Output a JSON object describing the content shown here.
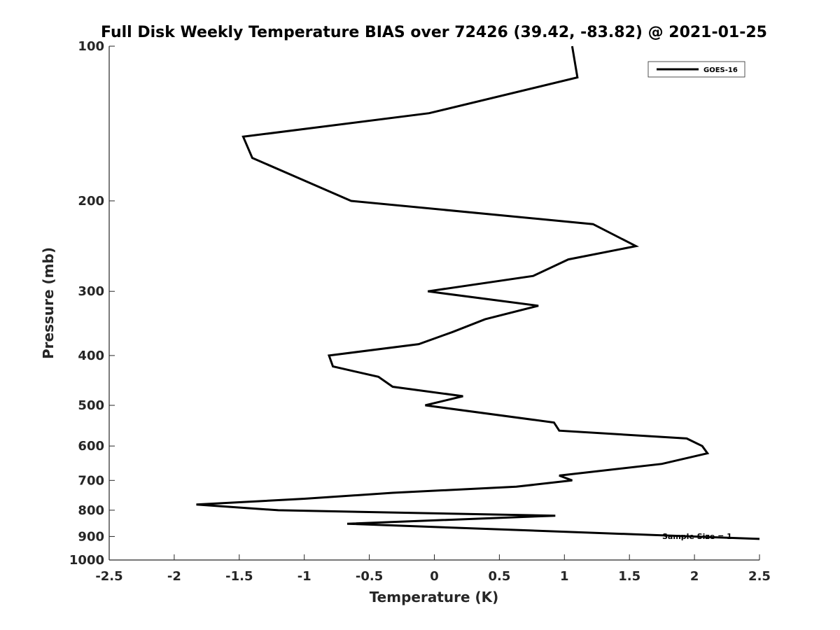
{
  "chart_data": {
    "type": "line",
    "title": "Full Disk Weekly Temperature BIAS over 72426 (39.42, -83.82) @ 2021-01-25",
    "xlabel": "Temperature (K)",
    "ylabel": "Pressure (mb)",
    "xlim": [
      -2.5,
      2.5
    ],
    "ylim": [
      100,
      1000
    ],
    "y_scale": "log",
    "y_reversed": true,
    "x_ticks": [
      "-2.5",
      "-2",
      "-1.5",
      "-1",
      "-0.5",
      "0",
      "0.5",
      "1",
      "1.5",
      "2",
      "2.5"
    ],
    "y_ticks": [
      "100",
      "200",
      "300",
      "400",
      "500",
      "600",
      "700",
      "800",
      "900",
      "1000"
    ],
    "grid": false,
    "legend": {
      "location": "top-right",
      "entries": [
        "GOES-16"
      ]
    },
    "annotation": "Sample Size = 1",
    "series": [
      {
        "name": "GOES-16",
        "color": "#000000",
        "points": [
          [
            1.06,
            100
          ],
          [
            1.1,
            115
          ],
          [
            -0.04,
            135
          ],
          [
            -1.47,
            150
          ],
          [
            -1.4,
            165
          ],
          [
            -0.64,
            200
          ],
          [
            1.22,
            222
          ],
          [
            1.55,
            245
          ],
          [
            1.03,
            260
          ],
          [
            0.76,
            280
          ],
          [
            -0.05,
            300
          ],
          [
            0.8,
            320
          ],
          [
            0.39,
            340
          ],
          [
            0.14,
            360
          ],
          [
            -0.12,
            380
          ],
          [
            -0.81,
            400
          ],
          [
            -0.78,
            420
          ],
          [
            -0.43,
            440
          ],
          [
            -0.32,
            460
          ],
          [
            0.22,
            480
          ],
          [
            -0.07,
            500
          ],
          [
            0.92,
            540
          ],
          [
            0.96,
            560
          ],
          [
            1.94,
            580
          ],
          [
            2.06,
            600
          ],
          [
            2.1,
            620
          ],
          [
            1.75,
            650
          ],
          [
            0.96,
            685
          ],
          [
            1.06,
            700
          ],
          [
            0.63,
            720
          ],
          [
            -0.32,
            740
          ],
          [
            -1.0,
            760
          ],
          [
            -1.83,
            780
          ],
          [
            -1.2,
            800
          ],
          [
            0.93,
            820
          ],
          [
            -0.67,
            850
          ],
          [
            2.5,
            910
          ]
        ]
      }
    ]
  }
}
